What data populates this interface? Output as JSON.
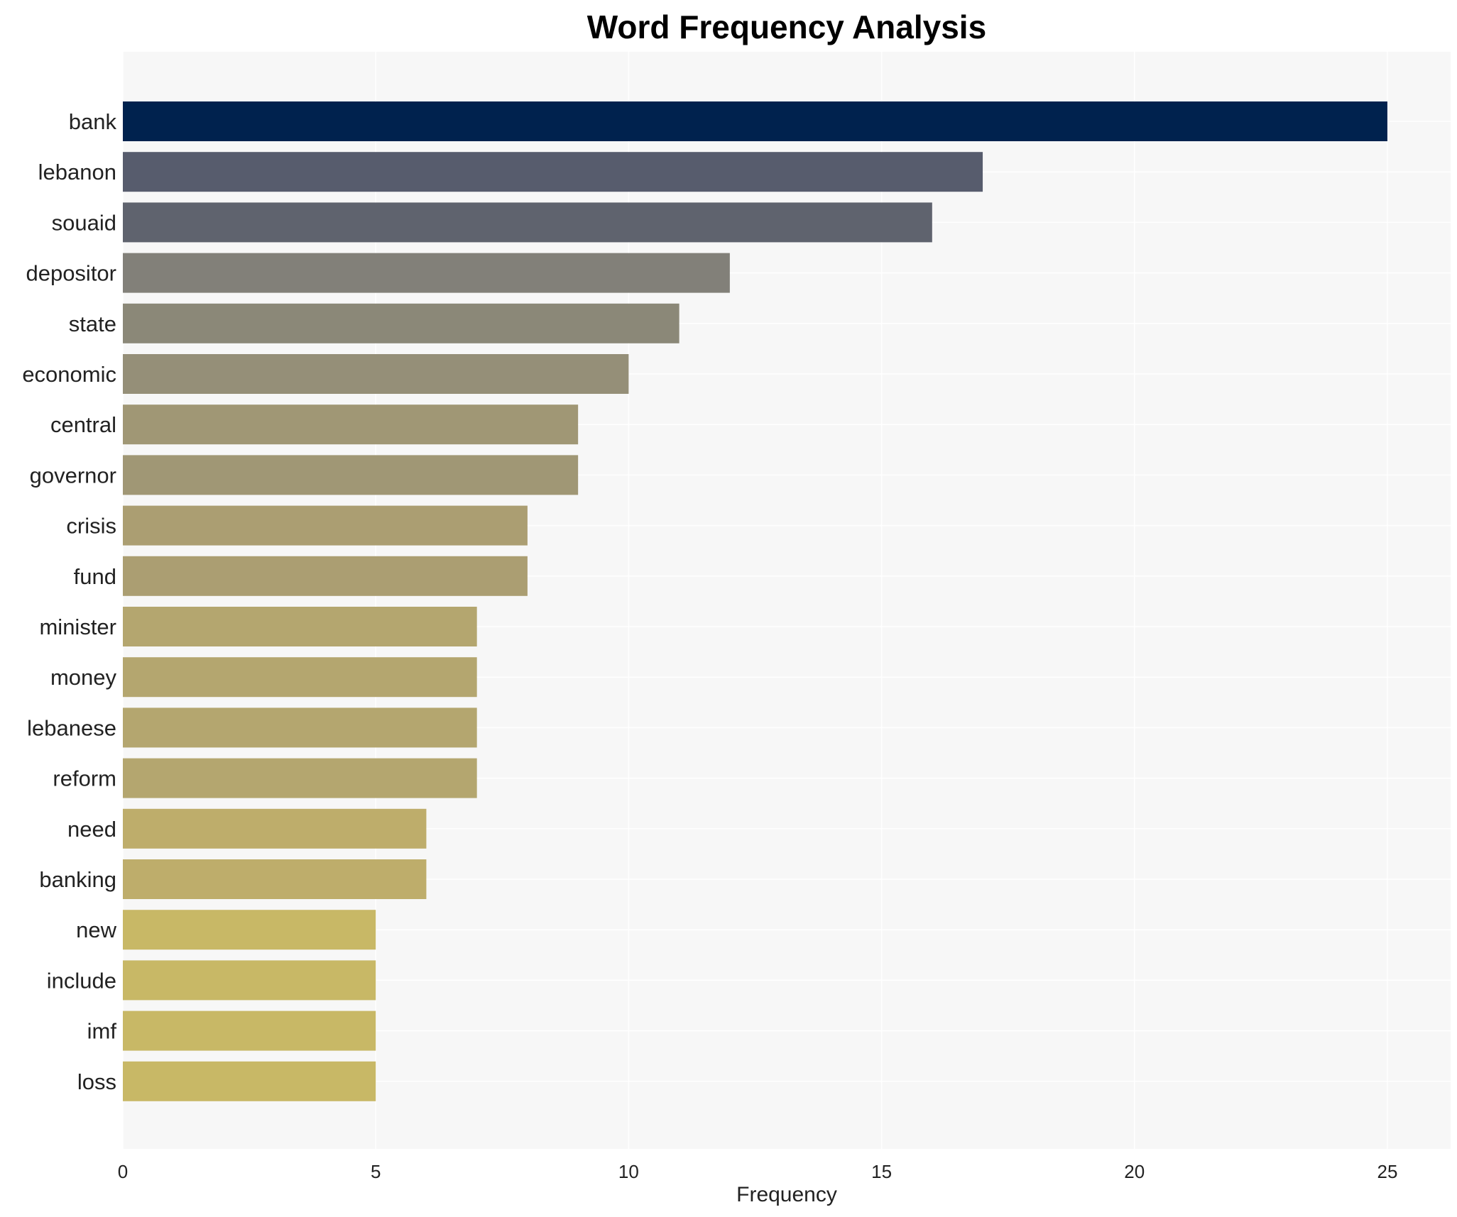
{
  "chart_data": {
    "type": "bar",
    "orientation": "horizontal",
    "title": "Word Frequency Analysis",
    "xlabel": "Frequency",
    "ylabel": "",
    "xlim": [
      0,
      26.25
    ],
    "xticks": [
      0,
      5,
      10,
      15,
      20,
      25
    ],
    "grid": true,
    "categories": [
      "bank",
      "lebanon",
      "souaid",
      "depositor",
      "state",
      "economic",
      "central",
      "governor",
      "crisis",
      "fund",
      "minister",
      "money",
      "lebanese",
      "reform",
      "need",
      "banking",
      "new",
      "include",
      "imf",
      "loss"
    ],
    "values": [
      25,
      17,
      16,
      12,
      11,
      10,
      9,
      9,
      8,
      8,
      7,
      7,
      7,
      7,
      6,
      6,
      5,
      5,
      5,
      5
    ],
    "colors": [
      "#00224e",
      "#575c6d",
      "#5f636e",
      "#828079",
      "#8b8878",
      "#958f78",
      "#a09775",
      "#a09775",
      "#ab9e72",
      "#ab9e72",
      "#b4a66f",
      "#b4a66f",
      "#b4a66f",
      "#b4a66f",
      "#bead6b",
      "#bead6b",
      "#c8b866",
      "#c8b866",
      "#c8b866",
      "#c8b866"
    ],
    "plot_background": "#f7f7f7",
    "grid_color": "#ffffff"
  }
}
